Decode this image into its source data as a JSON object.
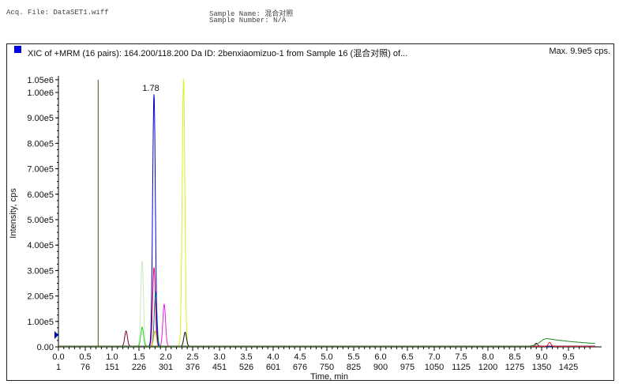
{
  "header": {
    "acq_file": "Acq. File: DataSET1.wiff",
    "sample_name": "Sample Name: 混合对照",
    "sample_number": "Sample Number: N/A"
  },
  "chart_data": {
    "type": "line",
    "title": "XIC of +MRM (16 pairs): 164.200/118.200 Da ID: 2benxiaomizuo-1 from Sample 16 (混合对照) of...",
    "max_label": "Max. 9.9e5 cps.",
    "xlabel": "Time, min",
    "ylabel": "Intensity, cps",
    "xlim": [
      0,
      10
    ],
    "ylim": [
      0,
      1050000
    ],
    "x_ticks": [
      "0.0",
      "0.5",
      "1.0",
      "1.5",
      "2.0",
      "2.5",
      "3.0",
      "3.5",
      "4.0",
      "4.5",
      "5.0",
      "5.5",
      "6.0",
      "6.5",
      "7.0",
      "7.5",
      "8.0",
      "8.5",
      "9.0",
      "9.5"
    ],
    "x_ticks_scan": [
      "1",
      "76",
      "151",
      "226",
      "301",
      "376",
      "451",
      "526",
      "601",
      "676",
      "750",
      "825",
      "900",
      "975",
      "1050",
      "1125",
      "1200",
      "1275",
      "1350",
      "1425"
    ],
    "y_ticks": [
      "0.00",
      "1.00e5",
      "2.00e5",
      "3.00e5",
      "4.00e5",
      "5.00e5",
      "6.00e5",
      "7.00e5",
      "8.00e5",
      "9.00e5",
      "1.00e6",
      "1.05e6"
    ],
    "peak_label": "1.78",
    "marker_line": {
      "time": 0.74,
      "color": "#5a4a10"
    },
    "series": [
      {
        "color": "#c8e8c0",
        "peaks": [
          [
            1.56,
            335000
          ]
        ]
      },
      {
        "color": "#22cc22",
        "peaks": [
          [
            1.56,
            75000
          ]
        ]
      },
      {
        "color": "#800030",
        "peaks": [
          [
            1.26,
            60000
          ],
          [
            8.9,
            12000
          ]
        ]
      },
      {
        "color": "#e020e0",
        "peaks": [
          [
            1.97,
            165000
          ]
        ]
      },
      {
        "color": "#dd0060",
        "peaks": [
          [
            1.78,
            310000
          ]
        ]
      },
      {
        "color": "#008080",
        "peaks": [
          [
            1.81,
            210000
          ]
        ]
      },
      {
        "color": "#e0b000",
        "peaks": [
          [
            1.8,
            60000
          ]
        ]
      },
      {
        "color": "#d8f020",
        "peaks": [
          [
            2.33,
            1050000
          ]
        ]
      },
      {
        "color": "#111111",
        "peaks": [
          [
            2.36,
            55000
          ]
        ]
      },
      {
        "color": "#0000cc",
        "peaks": [
          [
            1.78,
            990000
          ]
        ]
      },
      {
        "color": "#dd2222",
        "peaks": [
          [
            9.15,
            15000
          ]
        ]
      },
      {
        "color": "#228822",
        "peaks": [
          [
            9.1,
            30000
          ]
        ],
        "tail": true
      }
    ]
  }
}
